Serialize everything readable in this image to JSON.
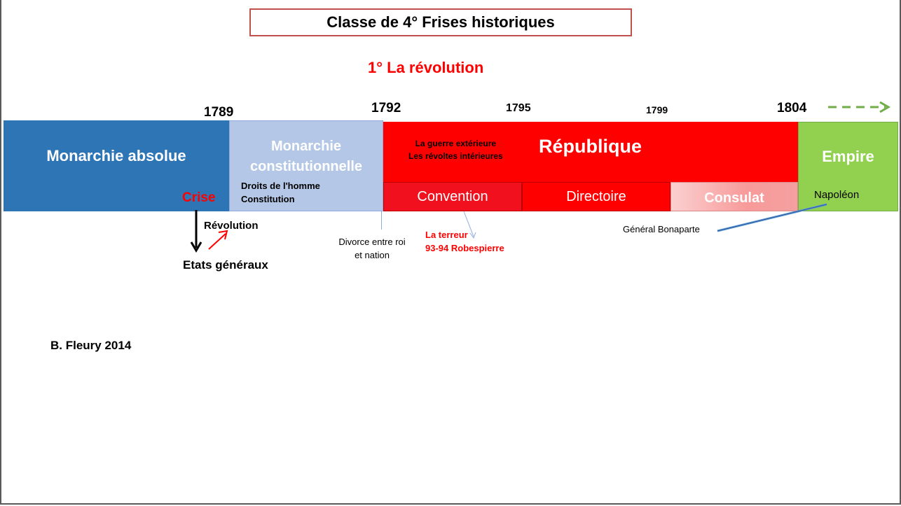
{
  "title": "Classe de 4°  Frises historiques",
  "subtitle": "1° La révolution",
  "years": {
    "y1789": "1789",
    "y1792": "1792",
    "y1795": "1795",
    "y1799": "1799",
    "y1804": "1804"
  },
  "periods": {
    "monarchie_absolue": {
      "label": "Monarchie absolue",
      "color": "#2e75b6"
    },
    "monarchie_constitutionnelle": {
      "label": "Monarchie constitutionnelle",
      "color": "#b4c7e7",
      "note_line1": "Droits de l'homme",
      "note_line2": "Constitution"
    },
    "republique": {
      "label": "République",
      "color": "#ff0000",
      "note_line1": "La guerre extérieure",
      "note_line2": "Les révoltes intérieures"
    },
    "convention": {
      "label": "Convention",
      "color": "#f0101e"
    },
    "directoire": {
      "label": "Directoire",
      "color": "#ff0000"
    },
    "consulat": {
      "label": "Consulat",
      "color": "#f8a8a8"
    },
    "empire": {
      "label": "Empire",
      "color": "#92d050",
      "note": "Napoléon"
    }
  },
  "annotations": {
    "crise": "Crise",
    "revolution": "Révolution",
    "etats_generaux": "Etats généraux",
    "divorce_line1": "Divorce entre roi",
    "divorce_line2": "et nation",
    "terreur_line1": "La terreur",
    "terreur_line2": "93-94 Robespierre",
    "bonaparte": "Général Bonaparte"
  },
  "author": "B. Fleury 2014"
}
